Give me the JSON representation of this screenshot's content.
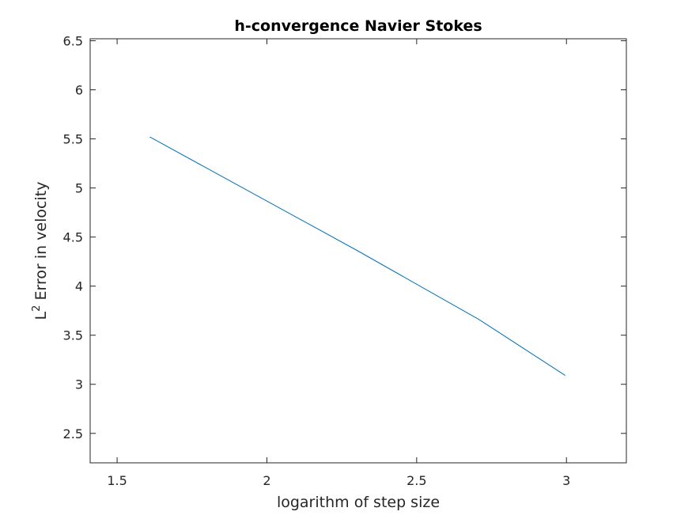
{
  "chart_data": {
    "type": "line",
    "title": "h-convergence Navier Stokes",
    "xlabel": "logarithm of step size",
    "ylabel": {
      "prefix": "L",
      "superscript": "2",
      "suffix": " Error in velocity"
    },
    "xlim": [
      1.41,
      3.2
    ],
    "ylim": [
      2.2,
      6.52
    ],
    "xticks": [
      1.5,
      2,
      2.5,
      3
    ],
    "xtick_labels": [
      "1.5",
      "2",
      "2.5",
      "3"
    ],
    "yticks": [
      2.5,
      3,
      3.5,
      4,
      4.5,
      5,
      5.5,
      6,
      6.5
    ],
    "ytick_labels": [
      "2.5",
      "3",
      "3.5",
      "4",
      "4.5",
      "5",
      "5.5",
      "6",
      "6.5"
    ],
    "grid": false,
    "series": [
      {
        "color": "#0072BD",
        "x": [
          1.609,
          2.303,
          2.708,
          2.996
        ],
        "y": [
          5.52,
          4.36,
          3.66,
          3.09
        ]
      }
    ]
  }
}
